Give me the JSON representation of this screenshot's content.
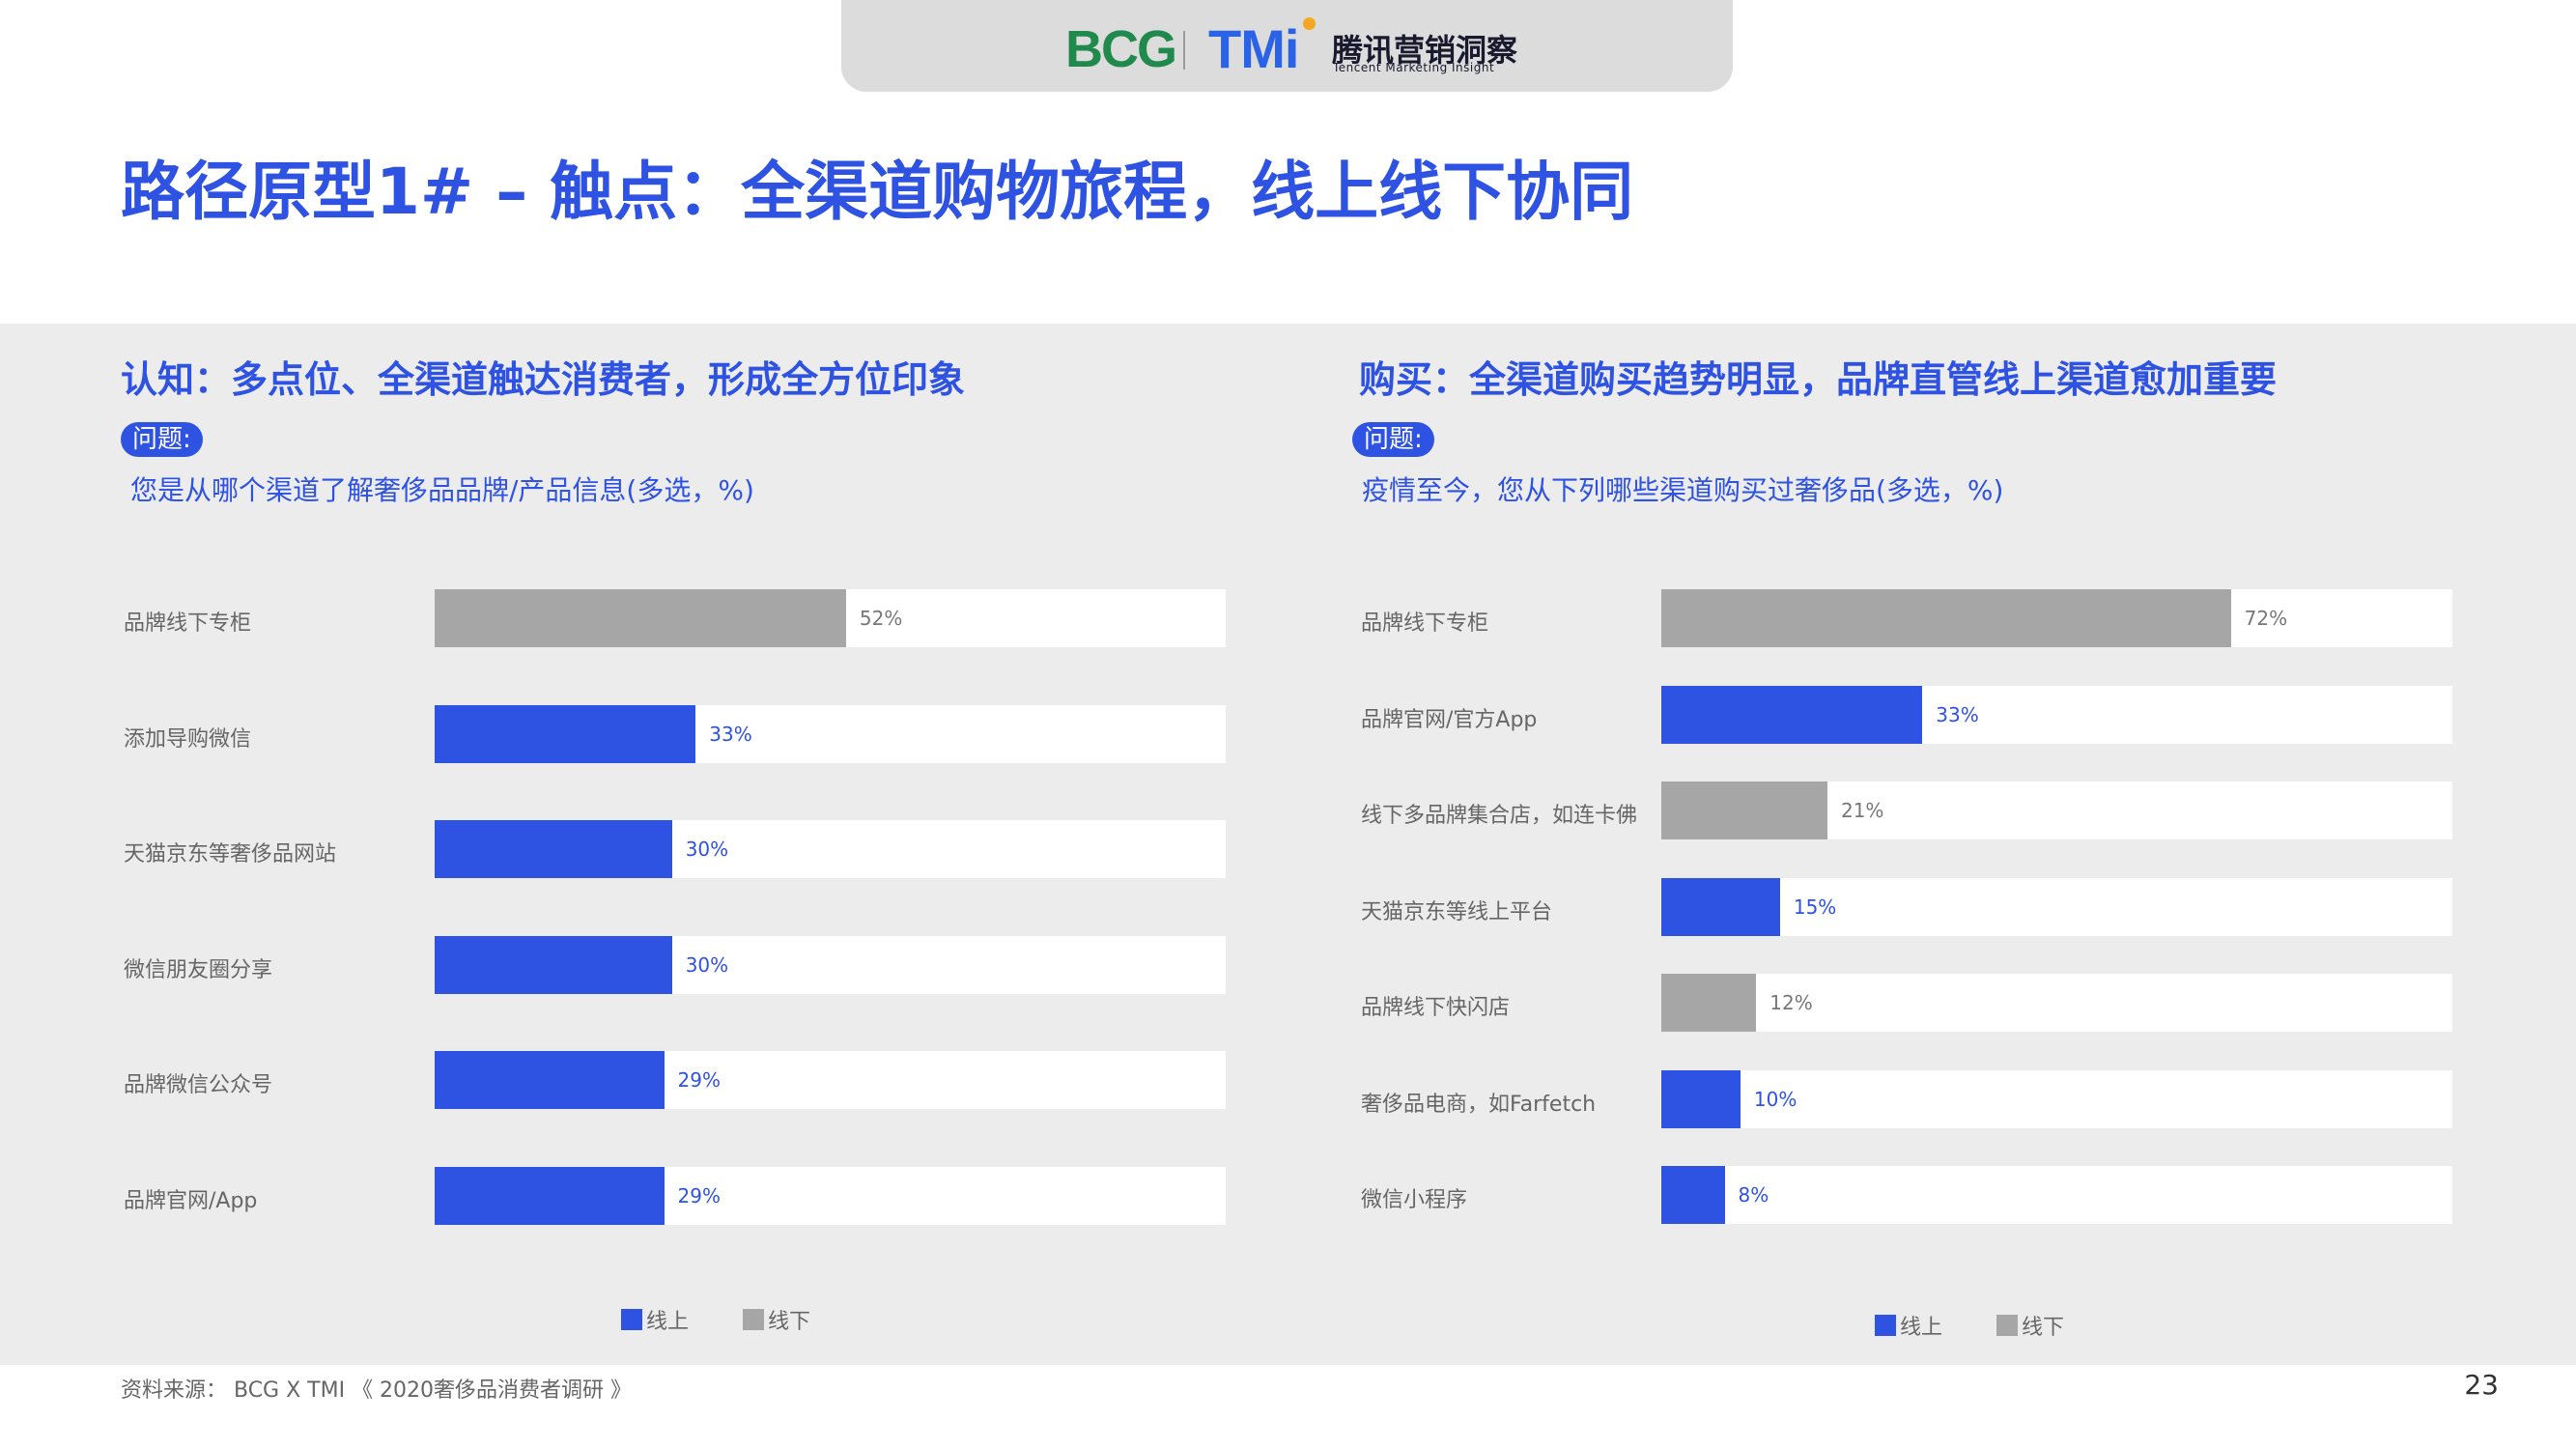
{
  "header": {
    "logo_bcg": "BCG",
    "logo_tmi": "TMi",
    "logo_tmi_cn": "腾讯营销洞察",
    "logo_tmi_en": "Tencent Marketing Insight"
  },
  "title": "路径原型1# – 触点：全渠道购物旅程，线上线下协同",
  "colors": {
    "online": "#2e52e2",
    "offline": "#a6a6a6",
    "accent": "#2e52e2"
  },
  "left_panel": {
    "title": "认知：多点位、全渠道触达消费者，形成全方位印象",
    "question_badge": "问题:",
    "question": "您是从哪个渠道了解奢侈品品牌/产品信息(多选，%)"
  },
  "right_panel": {
    "title": "购买：全渠道购买趋势明显，品牌直管线上渠道愈加重要",
    "question_badge": "问题:",
    "question": "疫情至今，您从下列哪些渠道购买过奢侈品(多选，%)"
  },
  "legend": {
    "online": "线上",
    "offline": "线下"
  },
  "chart_data": [
    {
      "type": "bar",
      "orientation": "horizontal",
      "categories": [
        "品牌线下专柜",
        "添加导购微信",
        "天猫京东等奢侈品网站",
        "微信朋友圈分享",
        "品牌微信公众号",
        "品牌官网/App"
      ],
      "values": [
        52,
        33,
        30,
        30,
        29,
        29
      ],
      "value_labels": [
        "52%",
        "33%",
        "30%",
        "30%",
        "29%",
        "29%"
      ],
      "channel": [
        "线下",
        "线上",
        "线上",
        "线上",
        "线上",
        "线上"
      ],
      "xlim": [
        0,
        100
      ],
      "legend": [
        "线上",
        "线下"
      ],
      "legend_position": "bottom"
    },
    {
      "type": "bar",
      "orientation": "horizontal",
      "categories": [
        "品牌线下专柜",
        "品牌官网/官方App",
        "线下多品牌集合店，如连卡佛",
        "天猫京东等线上平台",
        "品牌线下快闪店",
        "奢侈品电商，如Farfetch",
        "微信小程序"
      ],
      "values": [
        72,
        33,
        21,
        15,
        12,
        10,
        8
      ],
      "value_labels": [
        "72%",
        "33%",
        "21%",
        "15%",
        "12%",
        "10%",
        "8%"
      ],
      "channel": [
        "线下",
        "线上",
        "线下",
        "线上",
        "线下",
        "线上",
        "线上"
      ],
      "xlim": [
        0,
        100
      ],
      "legend": [
        "线上",
        "线下"
      ],
      "legend_position": "bottom"
    }
  ],
  "footer": {
    "source": "资料来源： BCG X TMI 《 2020奢侈品消费者调研 》",
    "page": "23"
  }
}
